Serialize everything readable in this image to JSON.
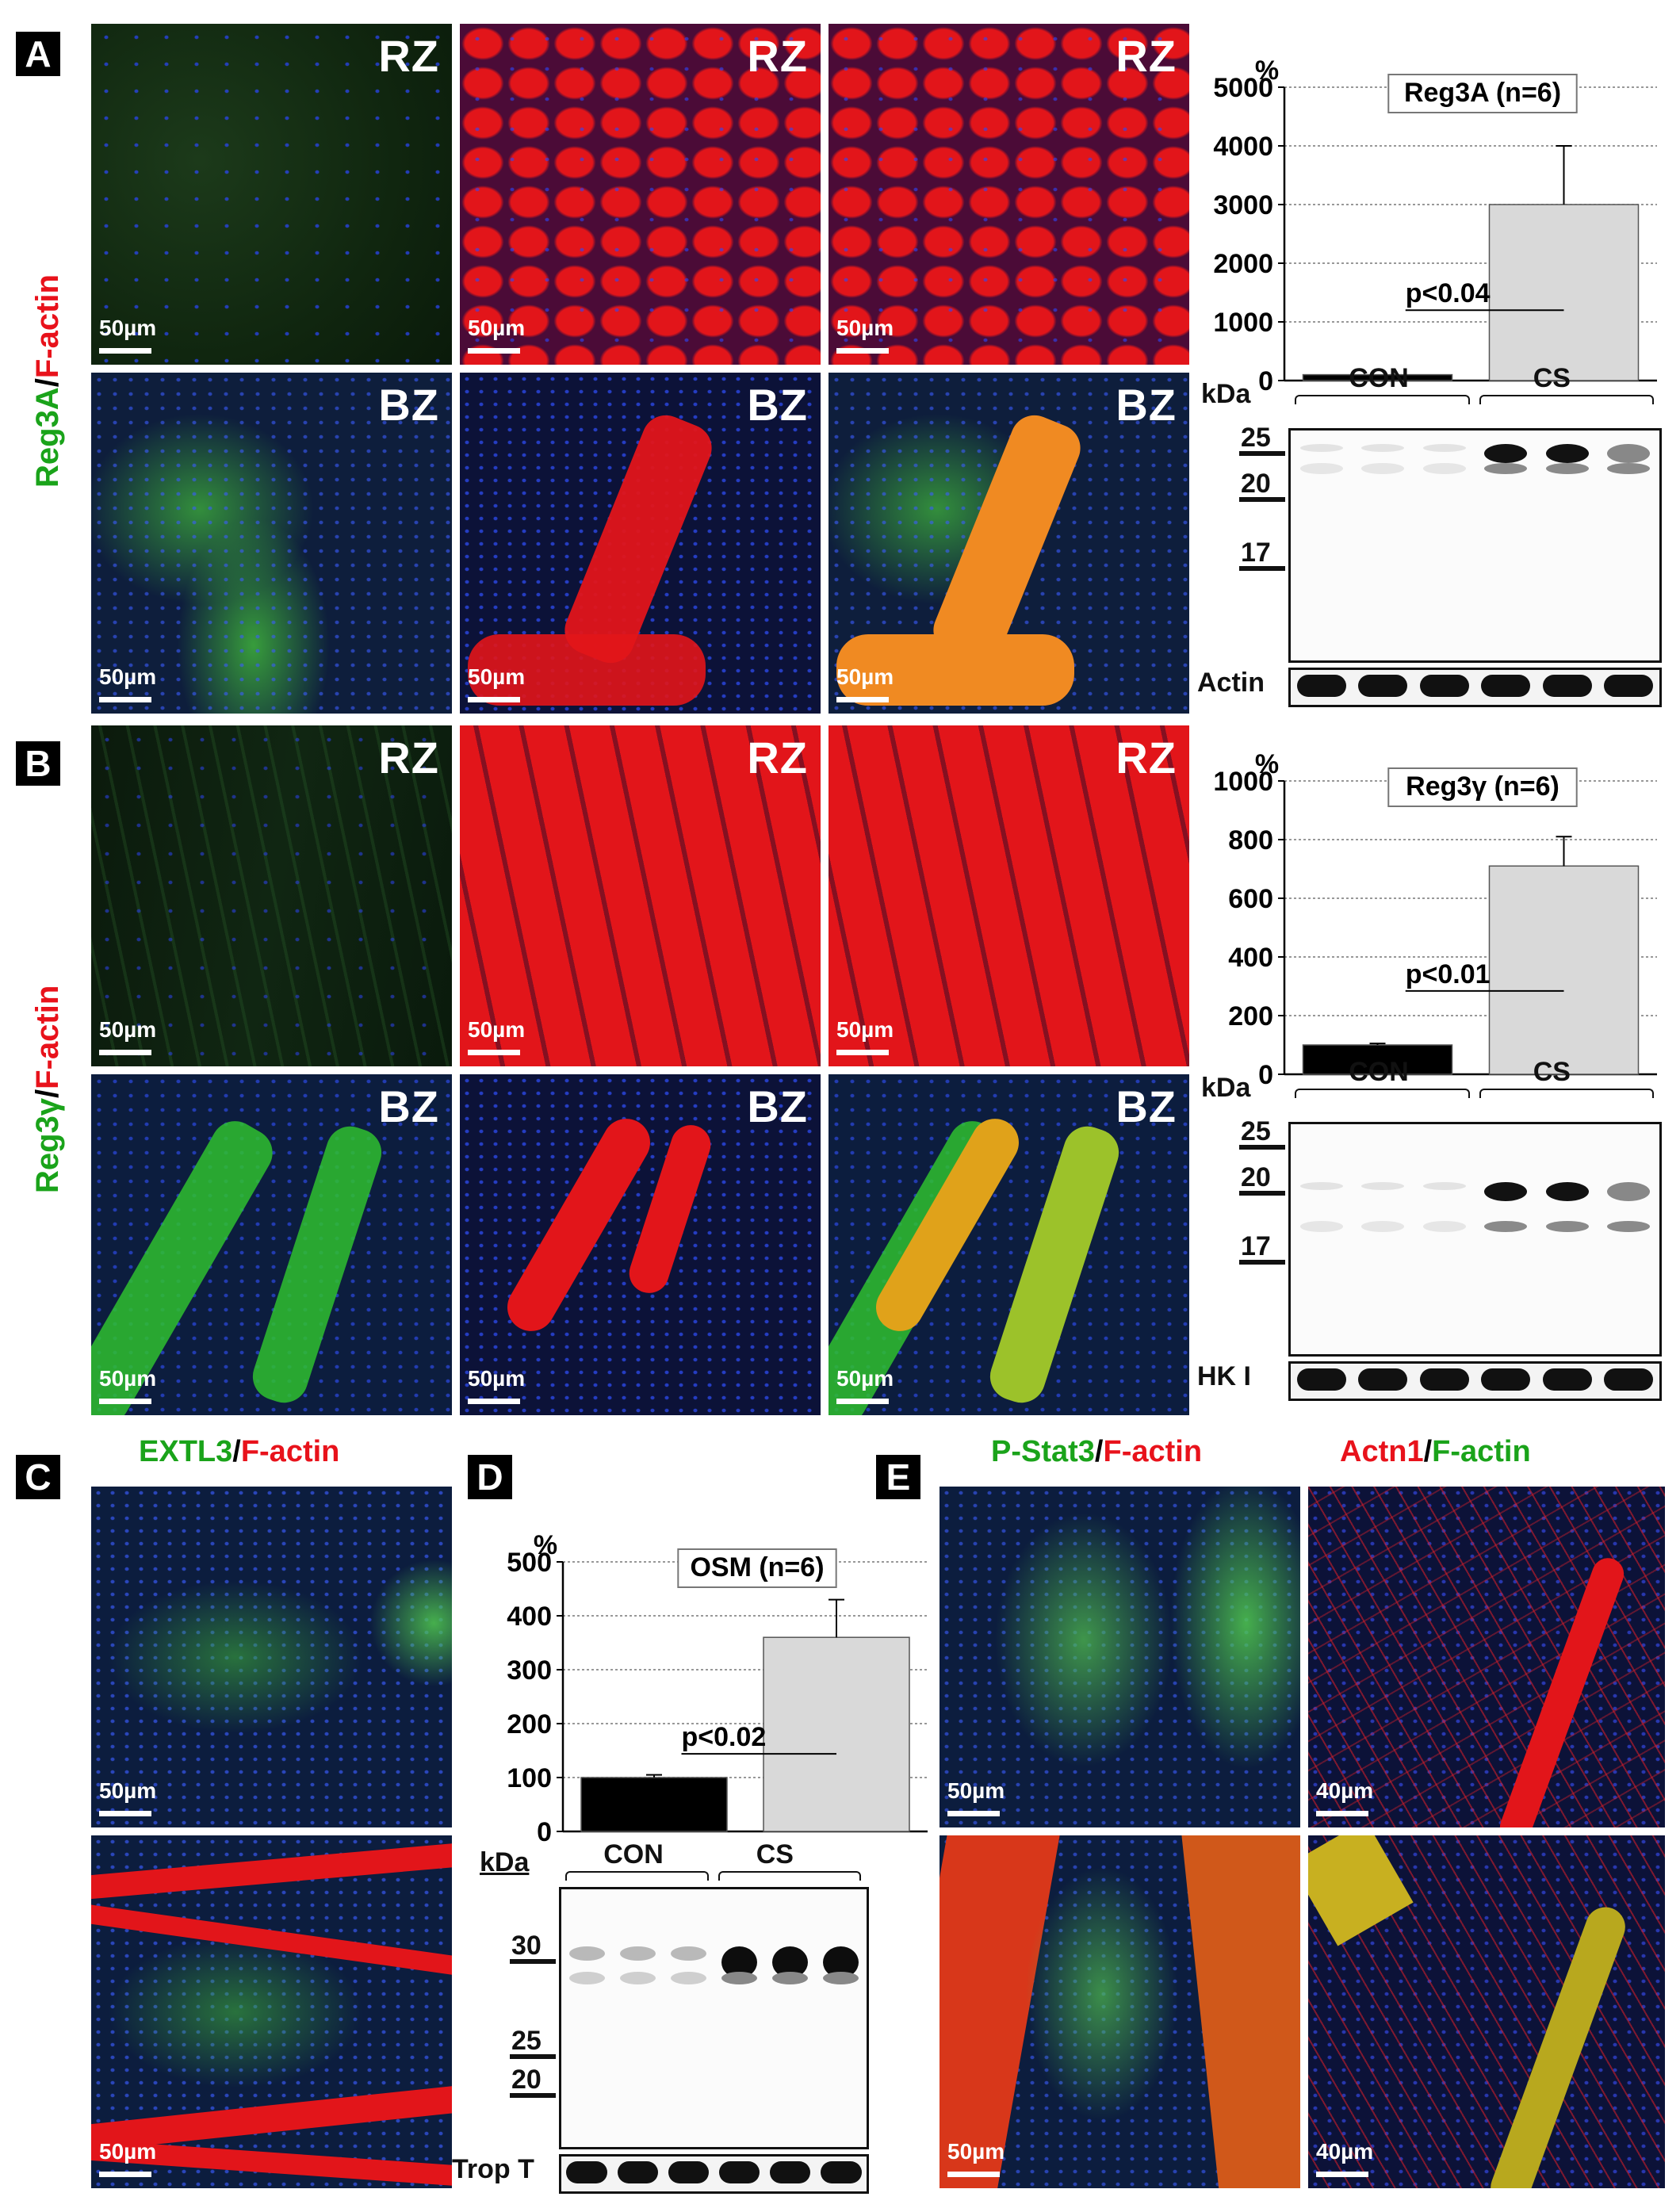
{
  "panel_letters": [
    "A",
    "B",
    "C",
    "D",
    "E"
  ],
  "row_labels": {
    "a": {
      "green": "Reg3A",
      "sep": "/",
      "red": "F-actin"
    },
    "b": {
      "green": "Reg3γ",
      "sep": "/",
      "red": "F-actin"
    }
  },
  "zones": {
    "rz": "RZ",
    "bz": "BZ"
  },
  "scale_bars": {
    "s50": "50µm",
    "s40": "40µm"
  },
  "panel_c_title": {
    "green": "EXTL3",
    "sep": "/",
    "red": "F-actin"
  },
  "panel_e_titles": {
    "left": {
      "green": "P-Stat3",
      "sep": "/",
      "red": "F-actin"
    },
    "right": {
      "red": "Actn1",
      "sep": "/",
      "green": "F-actin"
    }
  },
  "colors": {
    "green": "#1aa31a",
    "red": "#e8121b",
    "bar_con": "#000000",
    "bar_cs": "#d9d9d9"
  },
  "chart_data": [
    {
      "type": "bar",
      "title": "Reg3A (n=6)",
      "ylabel": "%",
      "categories": [
        "CON",
        "CS"
      ],
      "values": [
        100,
        3000
      ],
      "error": [
        0,
        1000
      ],
      "ylim": [
        0,
        5000
      ],
      "yticks": [
        0,
        1000,
        2000,
        3000,
        4000,
        5000
      ],
      "annotation": "p<0.04",
      "grid": true
    },
    {
      "type": "bar",
      "title": "Reg3γ (n=6)",
      "ylabel": "%",
      "categories": [
        "CON",
        "CS"
      ],
      "values": [
        100,
        710
      ],
      "error": [
        5,
        100
      ],
      "ylim": [
        0,
        1000
      ],
      "yticks": [
        0,
        200,
        400,
        600,
        800,
        1000
      ],
      "annotation": "p<0.01",
      "grid": true
    },
    {
      "type": "bar",
      "title": "OSM (n=6)",
      "ylabel": "%",
      "categories": [
        "CON",
        "CS"
      ],
      "values": [
        100,
        360
      ],
      "error": [
        5,
        70
      ],
      "ylim": [
        0,
        500
      ],
      "yticks": [
        0,
        100,
        200,
        300,
        400,
        500
      ],
      "annotation": "p<0.02",
      "grid": true
    }
  ],
  "blots": {
    "a": {
      "unit": "kDa",
      "markers": [
        "25",
        "20",
        "17"
      ],
      "groups": [
        "CON",
        "CS"
      ],
      "loading": "Actin"
    },
    "b": {
      "unit": "kDa",
      "markers": [
        "25",
        "20",
        "17"
      ],
      "groups": [
        "CON",
        "CS"
      ],
      "loading": "HK I"
    },
    "d": {
      "unit": "kDa",
      "markers": [
        "30",
        "25",
        "20"
      ],
      "groups": [
        "CON",
        "CS"
      ],
      "loading": "Trop T"
    }
  }
}
